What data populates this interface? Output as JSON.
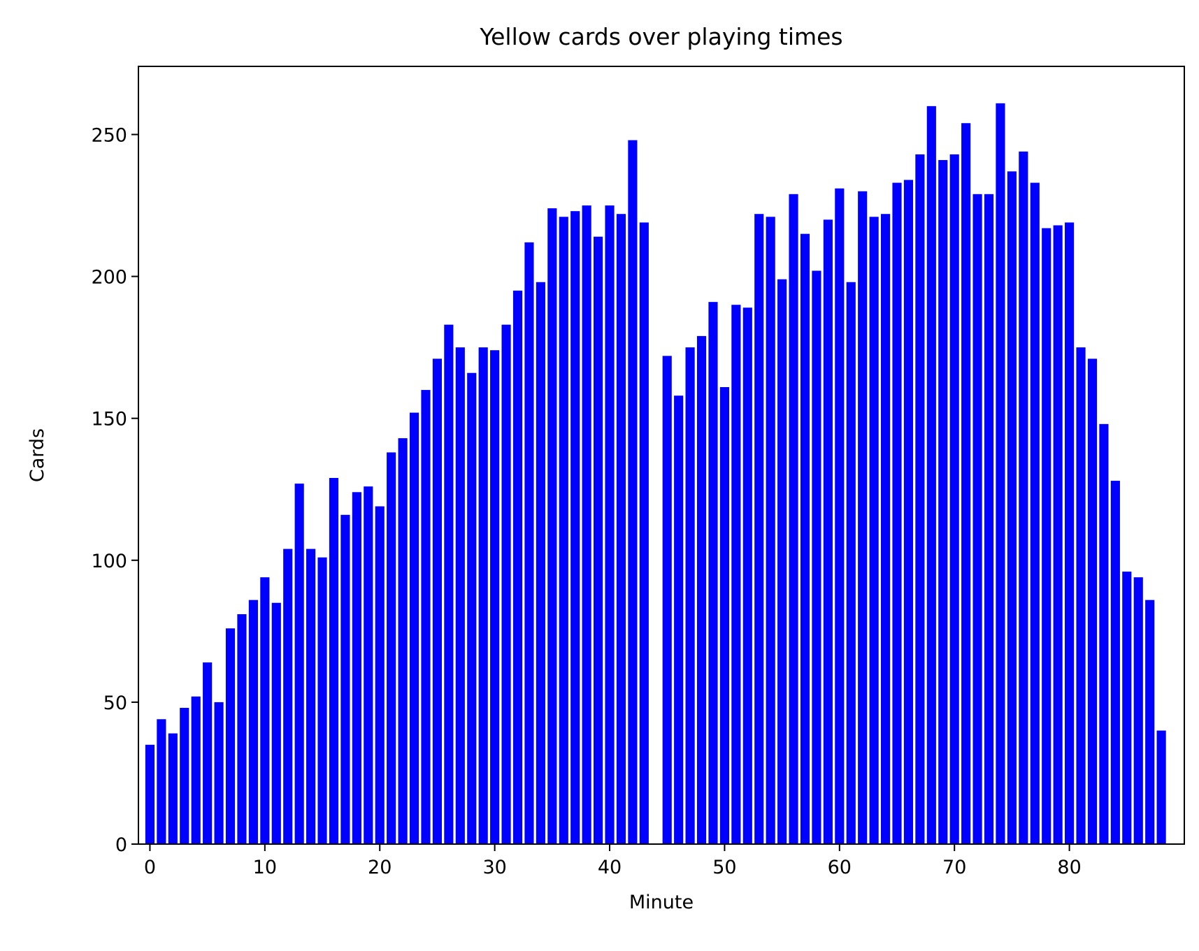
{
  "chart_data": {
    "type": "bar",
    "title": "Yellow cards over playing times",
    "xlabel": "Minute",
    "ylabel": "Cards",
    "xlim": [
      -1,
      90
    ],
    "ylim": [
      0,
      274
    ],
    "xticks": [
      0,
      10,
      20,
      30,
      40,
      50,
      60,
      70,
      80
    ],
    "yticks": [
      0,
      50,
      100,
      150,
      200,
      250
    ],
    "grid": false,
    "bar_color": "#0000ff",
    "x": [
      0,
      1,
      2,
      3,
      4,
      5,
      6,
      7,
      8,
      9,
      10,
      11,
      12,
      13,
      14,
      15,
      16,
      17,
      18,
      19,
      20,
      21,
      22,
      23,
      24,
      25,
      26,
      27,
      28,
      29,
      30,
      31,
      32,
      33,
      34,
      35,
      36,
      37,
      38,
      39,
      40,
      41,
      42,
      43,
      44,
      45,
      46,
      47,
      48,
      49,
      50,
      51,
      52,
      53,
      54,
      55,
      56,
      57,
      58,
      59,
      60,
      61,
      62,
      63,
      64,
      65,
      66,
      67,
      68,
      69,
      70,
      71,
      72,
      73,
      74,
      75,
      76,
      77,
      78,
      79,
      80,
      81,
      82,
      83,
      84,
      85,
      86,
      87,
      88
    ],
    "values": [
      35,
      44,
      39,
      48,
      52,
      64,
      50,
      76,
      81,
      86,
      94,
      85,
      104,
      127,
      104,
      101,
      129,
      116,
      124,
      126,
      119,
      138,
      143,
      152,
      160,
      171,
      183,
      175,
      166,
      175,
      174,
      183,
      195,
      212,
      198,
      224,
      221,
      223,
      225,
      214,
      225,
      222,
      248,
      219,
      0,
      172,
      158,
      175,
      179,
      191,
      161,
      190,
      189,
      222,
      221,
      199,
      229,
      215,
      202,
      220,
      231,
      198,
      230,
      221,
      222,
      233,
      234,
      243,
      260,
      241,
      243,
      254,
      229,
      229,
      261,
      237,
      244,
      233,
      217,
      218,
      219,
      175,
      171,
      148,
      128,
      96,
      94,
      86,
      40
    ]
  }
}
